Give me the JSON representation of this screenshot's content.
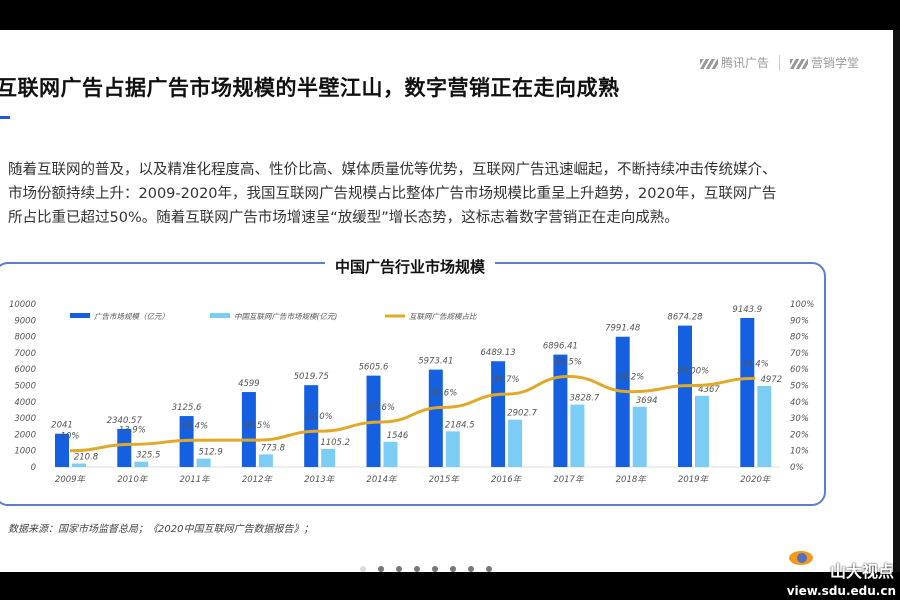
{
  "header": {
    "logo1": "腾讯广告",
    "logo2": "营销学堂",
    "title": "互联网广告占据广告市场规模的半壁江山，数字营销正在走向成熟"
  },
  "paragraph": [
    "随着互联网的普及，以及精准化程度高、性价比高、媒体质量优等优势，互联网广告迅速崛起，不断持续冲击传统媒介、",
    "市场份额持续上升：2009-2020年，我国互联网广告规模占比整体广告市场规模比重呈上升趋势，2020年，互联网广告",
    "所占比重已超过50%。随着互联网广告市场增速呈“放缓型”增长态势，这标志着数字营销正在走向成熟。"
  ],
  "source": "数据来源：国家市场监督总局；《2020中国互联网广告数据报告》；",
  "watermark": {
    "name": "山大视点",
    "url": "view.sdu.edu.cn"
  },
  "colors": {
    "bar_total": "#1560e0",
    "bar_internet": "#7ccdf5",
    "line": "#e0a92a"
  },
  "chart_data": {
    "type": "bar",
    "title": "中国广告行业市场规模",
    "categories": [
      "2009年",
      "2010年",
      "2011年",
      "2012年",
      "2013年",
      "2014年",
      "2015年",
      "2016年",
      "2017年",
      "2018年",
      "2019年",
      "2020年"
    ],
    "series": [
      {
        "name": "广告市场规模（亿元）",
        "type": "bar",
        "axis": "left",
        "values": [
          2041,
          2340.57,
          3125.6,
          4599,
          5019.75,
          5605.6,
          5973.41,
          6489.13,
          6896.41,
          7991.48,
          8674.28,
          9143.9
        ],
        "labels": [
          "2041",
          "2340.57",
          "3125.6",
          "4599",
          "5019.75",
          "5605.6",
          "5973.41",
          "6489.13",
          "6896.41",
          "7991.48",
          "8674.28",
          "9143.9"
        ]
      },
      {
        "name": "中国互联网广告市场规模(亿元)",
        "type": "bar",
        "axis": "left",
        "values": [
          210.8,
          325.5,
          512.9,
          773.8,
          1105.2,
          1546,
          2184.5,
          2902.7,
          3828.7,
          3694,
          4367,
          4972
        ],
        "labels": [
          "210.8",
          "325.5",
          "512.9",
          "773.8",
          "1105.2",
          "1546",
          "2184.5",
          "2902.7",
          "3828.7",
          "3694",
          "4367",
          "4972"
        ]
      },
      {
        "name": "互联网广告规模占比",
        "type": "line",
        "axis": "right",
        "values": [
          10,
          13.9,
          16.4,
          16.5,
          22,
          27.6,
          36.6,
          44.7,
          55.5,
          46.2,
          50,
          54.4
        ],
        "labels": [
          "10%",
          "13.9%",
          "16.4%",
          "16.5%",
          "22.0%",
          "27.6%",
          "36.6%",
          "44.7%",
          "55.5%",
          "46.2%",
          "50.00%",
          "54.4%"
        ]
      }
    ],
    "ylim": [
      0,
      10000
    ],
    "yticks": [
      "0",
      "1000",
      "2000",
      "3000",
      "4000",
      "5000",
      "6000",
      "7000",
      "8000",
      "9000",
      "10000"
    ],
    "y2lim": [
      0,
      100
    ],
    "y2ticks": [
      "0%",
      "10%",
      "20%",
      "30%",
      "40%",
      "50%",
      "60%",
      "70%",
      "80%",
      "90%",
      "100%"
    ],
    "legend": "top"
  }
}
